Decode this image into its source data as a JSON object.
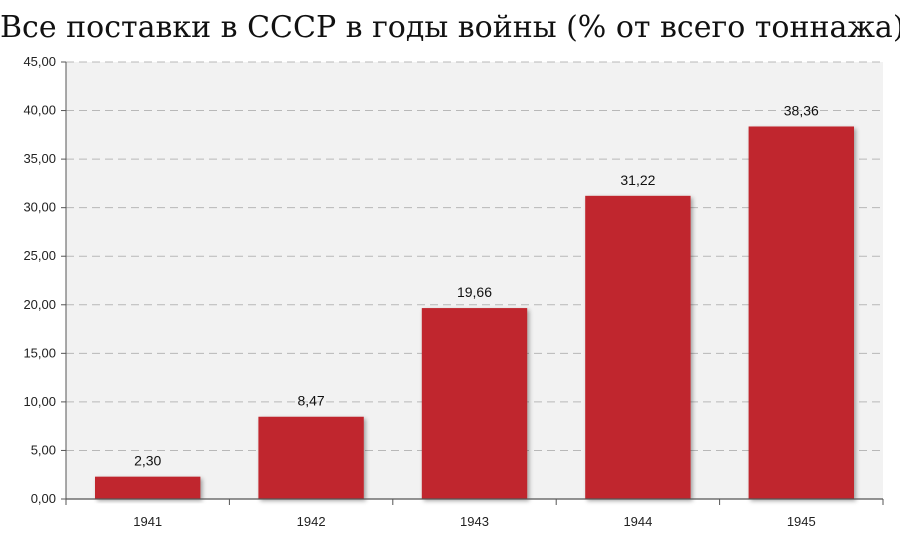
{
  "chart_data": {
    "type": "bar",
    "title": "Все поставки в СССР в годы войны (% от всего тоннажа)",
    "categories": [
      "1941",
      "1942",
      "1943",
      "1944",
      "1945"
    ],
    "values": [
      2.3,
      8.47,
      19.66,
      31.22,
      38.36
    ],
    "data_labels": [
      "2,30",
      "8,47",
      "19,66",
      "31,22",
      "38,36"
    ],
    "y_ticks": [
      "0,00",
      "5,00",
      "10,00",
      "15,00",
      "20,00",
      "25,00",
      "30,00",
      "35,00",
      "40,00",
      "45,00"
    ],
    "ylim": [
      0,
      45
    ],
    "xlabel": "",
    "ylabel": "",
    "grid": true,
    "colors": {
      "bar": "#c0272d",
      "plot_bg": "#f2f2f2",
      "grid": "#b8b8b8"
    }
  }
}
